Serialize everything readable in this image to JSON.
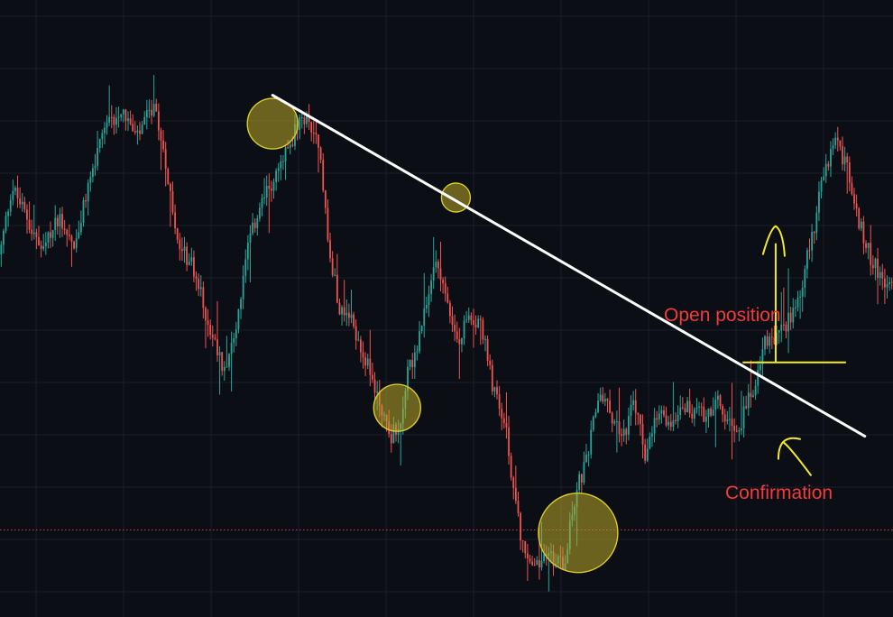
{
  "chart_data": {
    "type": "candlestick",
    "title": "",
    "xlabel": "",
    "ylabel": "",
    "grid": true,
    "colors": {
      "background": "#0c0e15",
      "grid": "#1a1e2a",
      "up": "#26a69a",
      "down": "#ef5350",
      "trendline": "#ffffff",
      "highlight_stroke": "#d8cc2c",
      "highlight_fill": "#b9a82a",
      "annotation_text": "#f23b3b",
      "annotation_ink": "#f2ea2a",
      "dotted_level": "#c9453f"
    },
    "ylim": [
      0,
      100
    ],
    "price_path": [
      [
        0,
        60
      ],
      [
        5,
        72
      ],
      [
        12,
        66
      ],
      [
        18,
        60
      ],
      [
        25,
        67
      ],
      [
        32,
        61
      ],
      [
        38,
        73
      ],
      [
        45,
        82
      ],
      [
        52,
        86
      ],
      [
        58,
        80
      ],
      [
        65,
        86
      ],
      [
        70,
        78
      ],
      [
        75,
        62
      ],
      [
        82,
        58
      ],
      [
        90,
        46
      ],
      [
        95,
        40
      ],
      [
        100,
        46
      ],
      [
        105,
        60
      ],
      [
        110,
        68
      ],
      [
        115,
        72
      ],
      [
        120,
        76
      ],
      [
        126,
        82
      ],
      [
        130,
        84
      ],
      [
        136,
        80
      ],
      [
        140,
        60
      ],
      [
        145,
        50
      ],
      [
        150,
        48
      ],
      [
        155,
        42
      ],
      [
        160,
        36
      ],
      [
        166,
        28
      ],
      [
        170,
        30
      ],
      [
        174,
        40
      ],
      [
        178,
        44
      ],
      [
        182,
        52
      ],
      [
        186,
        60
      ],
      [
        190,
        52
      ],
      [
        195,
        44
      ],
      [
        200,
        50
      ],
      [
        205,
        47
      ],
      [
        210,
        36
      ],
      [
        215,
        30
      ],
      [
        220,
        14
      ],
      [
        224,
        6
      ],
      [
        228,
        5
      ],
      [
        232,
        7
      ],
      [
        236,
        6
      ],
      [
        240,
        6
      ],
      [
        245,
        18
      ],
      [
        250,
        24
      ],
      [
        255,
        36
      ],
      [
        260,
        32
      ],
      [
        265,
        28
      ],
      [
        270,
        34
      ],
      [
        275,
        24
      ],
      [
        280,
        32
      ],
      [
        285,
        30
      ],
      [
        290,
        34
      ],
      [
        295,
        32
      ],
      [
        300,
        32
      ],
      [
        305,
        34
      ],
      [
        310,
        30
      ],
      [
        315,
        30
      ],
      [
        320,
        36
      ],
      [
        325,
        44
      ],
      [
        330,
        45
      ],
      [
        335,
        48
      ],
      [
        340,
        53
      ],
      [
        345,
        62
      ],
      [
        350,
        73
      ],
      [
        355,
        80
      ],
      [
        360,
        76
      ],
      [
        365,
        66
      ],
      [
        370,
        60
      ],
      [
        375,
        56
      ],
      [
        380,
        54
      ]
    ],
    "trendline": {
      "from": [
        116,
        88
      ],
      "to": [
        368,
        28
      ]
    },
    "highlight_circles": [
      {
        "at": [
          116,
          83
        ],
        "r": 28
      },
      {
        "at": [
          169,
          33
        ],
        "r": 26
      },
      {
        "at": [
          194,
          70
        ],
        "r": 16
      },
      {
        "at": [
          246,
          11
        ],
        "r": 44
      }
    ],
    "dotted_level": 11.5,
    "breakout_level": 41,
    "annotations": {
      "open_position": "Open position",
      "confirmation": "Confirmation"
    }
  }
}
